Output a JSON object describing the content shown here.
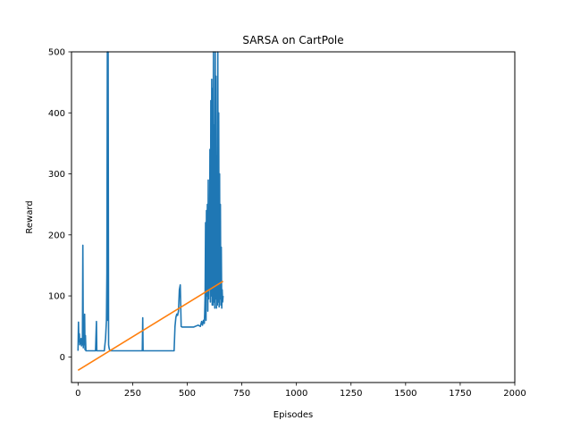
{
  "chart_data": {
    "type": "line",
    "title": "SARSA on CartPole",
    "xlabel": "Episodes",
    "ylabel": "Reward",
    "xlim": [
      -30,
      2000
    ],
    "ylim": [
      -42,
      500
    ],
    "xticks": [
      0,
      250,
      500,
      750,
      1000,
      1250,
      1500,
      1750,
      2000
    ],
    "yticks": [
      0,
      100,
      200,
      300,
      400,
      500
    ],
    "grid": false,
    "legend": "none",
    "series": [
      {
        "color": "#1f77b4",
        "x": [
          0,
          2,
          4,
          6,
          8,
          10,
          12,
          14,
          16,
          18,
          20,
          22,
          24,
          26,
          28,
          30,
          32,
          34,
          36,
          38,
          40,
          42,
          44,
          50,
          60,
          70,
          80,
          84,
          86,
          88,
          92,
          100,
          110,
          120,
          126,
          128,
          130,
          132,
          134,
          136,
          138,
          140,
          142,
          144,
          146,
          148,
          150,
          160,
          180,
          200,
          220,
          240,
          260,
          280,
          294,
          296,
          298,
          300,
          310,
          330,
          350,
          370,
          390,
          410,
          430,
          440,
          444,
          448,
          452,
          456,
          460,
          464,
          468,
          472,
          476,
          480,
          484,
          490,
          510,
          530,
          550,
          560,
          566,
          570,
          574,
          578,
          580,
          582,
          584,
          586,
          588,
          590,
          592,
          594,
          596,
          598,
          600,
          602,
          604,
          606,
          608,
          610,
          612,
          614,
          616,
          618,
          620,
          622,
          624,
          626,
          628,
          630,
          632,
          634,
          636,
          638,
          640,
          642,
          644,
          646,
          648,
          650,
          652,
          654,
          656,
          658,
          660,
          662,
          664
        ],
        "y": [
          10,
          57,
          25,
          38,
          20,
          28,
          22,
          30,
          18,
          26,
          20,
          183,
          15,
          52,
          20,
          70,
          12,
          35,
          10,
          10,
          10,
          10,
          10,
          10,
          10,
          10,
          10,
          58,
          10,
          10,
          10,
          10,
          10,
          10,
          30,
          45,
          60,
          137,
          500,
          60,
          500,
          20,
          15,
          12,
          10,
          11,
          10,
          10,
          10,
          10,
          10,
          10,
          10,
          10,
          10,
          64,
          10,
          10,
          10,
          10,
          10,
          10,
          10,
          10,
          10,
          10,
          50,
          65,
          70,
          68,
          75,
          110,
          118,
          50,
          49,
          49,
          49,
          49,
          49,
          49,
          52,
          50,
          58,
          52,
          60,
          55,
          70,
          100,
          220,
          60,
          240,
          100,
          250,
          75,
          290,
          95,
          180,
          110,
          340,
          90,
          420,
          100,
          455,
          85,
          440,
          85,
          500,
          90,
          380,
          80,
          500,
          95,
          460,
          80,
          330,
          85,
          500,
          90,
          400,
          82,
          300,
          95,
          250,
          85,
          180,
          80,
          110,
          90,
          100
        ],
        "name": ""
      },
      {
        "color": "#ff7f0e",
        "x": [
          0,
          664
        ],
        "y": [
          -22,
          124
        ],
        "name": ""
      }
    ]
  }
}
